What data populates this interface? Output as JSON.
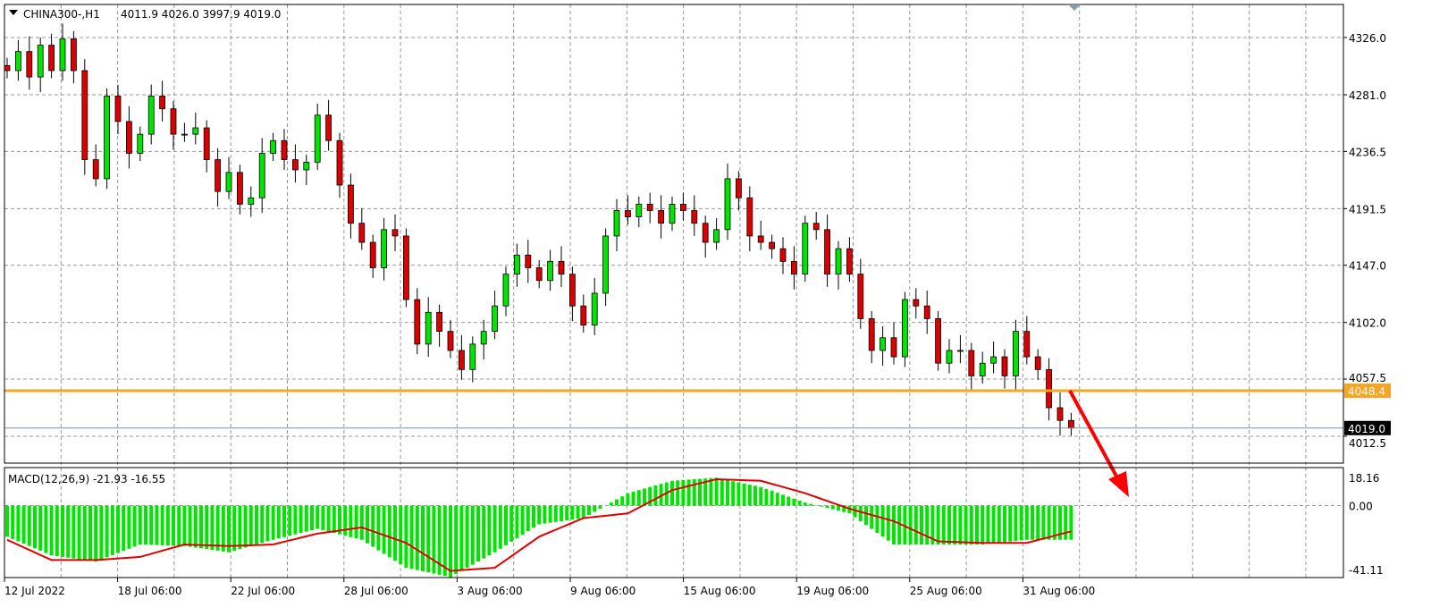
{
  "header": {
    "symbol": "CHINA300-,H1",
    "ohlc": "4011.9 4026.0 3997.9 4019.0"
  },
  "macd": {
    "label": "MACD(12,26,9) -21.93 -16.55",
    "ticks": [
      "18.16",
      "0.00",
      "-41.11"
    ],
    "hist_knots": [
      -20,
      -32,
      -36,
      -25,
      -26,
      -30,
      -22,
      -15,
      -22,
      -40,
      -46,
      -30,
      -12,
      -8,
      8,
      16,
      18,
      12,
      2,
      -5,
      -25,
      -25,
      -25,
      -22,
      -21.93
    ],
    "signal_knots": [
      -22,
      -35,
      -35,
      -33,
      -25,
      -26,
      -25,
      -18,
      -14,
      -24,
      -42,
      -40,
      -20,
      -8,
      -5,
      10,
      17,
      16,
      8,
      -2,
      -10,
      -23,
      -24,
      -24,
      -16.55
    ],
    "range": [
      -41.11,
      18.16
    ]
  },
  "chart_data": {
    "type": "candlestick",
    "ylim": [
      4000,
      4340
    ],
    "y_ticks": [
      "4326.0",
      "4281.0",
      "4236.5",
      "4191.5",
      "4147.0",
      "4102.0",
      "4057.5",
      "4012.5"
    ],
    "x_ticks": [
      "12 Jul 2022",
      "18 Jul 06:00",
      "22 Jul 06:00",
      "28 Jul 06:00",
      "3 Aug 06:00",
      "9 Aug 06:00",
      "15 Aug 06:00",
      "19 Aug 06:00",
      "25 Aug 06:00",
      "31 Aug 06:00"
    ],
    "closes": [
      4300,
      4315,
      4295,
      4320,
      4300,
      4325,
      4300,
      4230,
      4215,
      4280,
      4260,
      4235,
      4250,
      4280,
      4270,
      4250,
      4250,
      4255,
      4230,
      4205,
      4220,
      4195,
      4200,
      4235,
      4245,
      4230,
      4222,
      4228,
      4265,
      4245,
      4210,
      4180,
      4165,
      4145,
      4175,
      4170,
      4120,
      4085,
      4110,
      4095,
      4080,
      4065,
      4085,
      4095,
      4115,
      4140,
      4155,
      4145,
      4135,
      4150,
      4140,
      4115,
      4100,
      4125,
      4170,
      4190,
      4185,
      4195,
      4190,
      4180,
      4195,
      4190,
      4180,
      4165,
      4175,
      4215,
      4200,
      4170,
      4165,
      4160,
      4150,
      4140,
      4180,
      4175,
      4140,
      4160,
      4140,
      4105,
      4080,
      4090,
      4075,
      4120,
      4115,
      4105,
      4070,
      4080,
      4080,
      4060,
      4070,
      4075,
      4060,
      4095,
      4075,
      4065,
      4035,
      4025,
      4019
    ],
    "support_level": {
      "value": 4048.4,
      "label": "4048.4",
      "color": "#f5a623"
    },
    "current_price": {
      "value": 4019.0,
      "label": "4019.0"
    },
    "colors": {
      "bull": "#00e600",
      "bear": "#dd0000",
      "macd_hist": "#00e600",
      "signal": "#e00000",
      "arrow": "#ff0000"
    }
  }
}
